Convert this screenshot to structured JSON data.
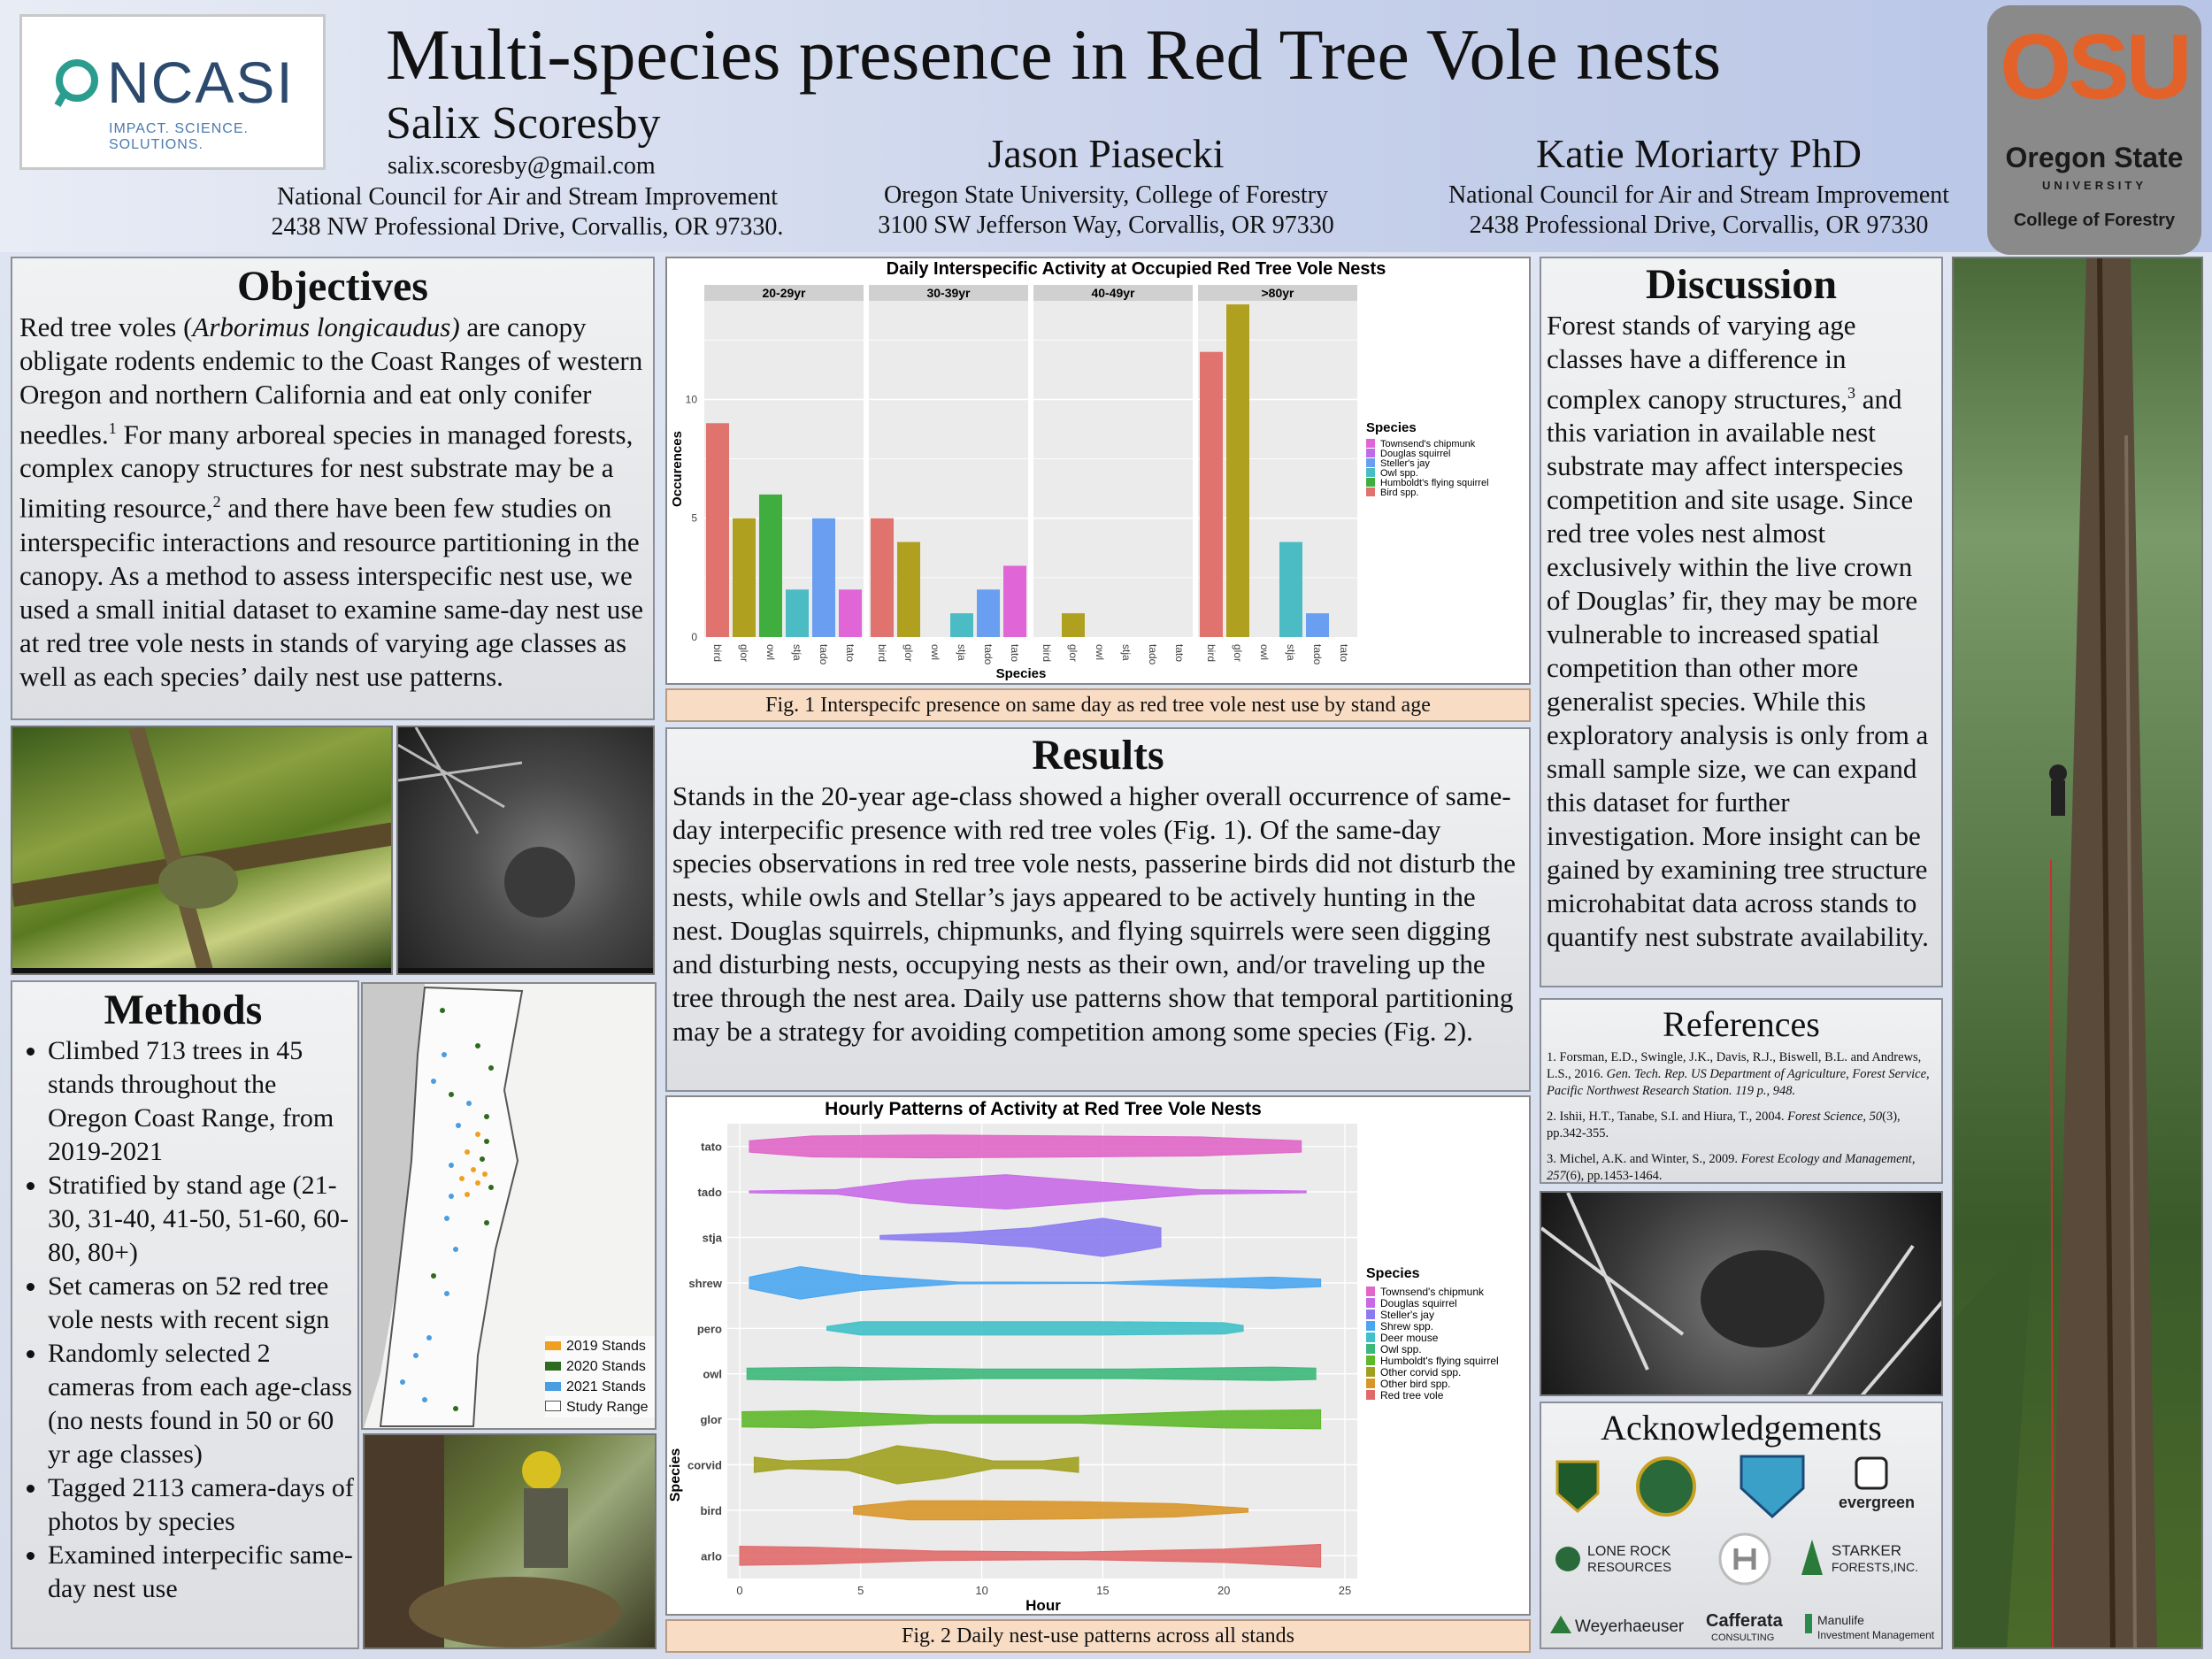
{
  "header": {
    "title": "Multi-species presence in Red Tree Vole nests",
    "authors": [
      {
        "name": "Salix Scoresby",
        "email": "salix.scoresby@gmail.com",
        "org": "National Council for Air and Stream Improvement",
        "addr": "2438 NW Professional Drive, Corvallis, OR 97330."
      },
      {
        "name": "Jason Piasecki",
        "org": "Oregon State University, College of Forestry",
        "addr": "3100 SW Jefferson Way, Corvallis, OR 97330"
      },
      {
        "name": "Katie Moriarty PhD",
        "org": "National Council for Air and Stream Improvement",
        "addr": "2438 Professional Drive, Corvallis, OR 97330"
      }
    ],
    "logo_left": {
      "text": "NCASI",
      "tagline": "IMPACT. SCIENCE. SOLUTIONS."
    },
    "logo_right": {
      "text": "OSU",
      "line1": "Oregon State",
      "line2": "UNIVERSITY",
      "line3": "College of Forestry"
    }
  },
  "objectives": {
    "title": "Objectives",
    "p1": "Red tree voles (",
    "p_species": "Arborimus longicaudus)",
    "p2": " are canopy obligate rodents endemic to the Coast Ranges of western Oregon and northern California and eat only conifer needles.",
    "sup1": "1",
    "p3": " For many arboreal species in managed forests, complex canopy structures for nest substrate may be a limiting resource,",
    "sup2": "2",
    "p4": " and there have been few studies on interspecific interactions and resource partitioning in the canopy. As a method to assess interspecific nest use, we used a small initial dataset to examine same-day nest use at red tree vole nests in stands of varying age classes as well as each species’ daily nest use patterns."
  },
  "methods": {
    "title": "Methods",
    "bullets": [
      "Climbed 713 trees in 45 stands throughout the Oregon Coast Range, from 2019-2021",
      "Stratified by stand age (21-30, 31-40, 41-50, 51-60, 60-80, 80+)",
      "Set cameras on 52 red tree vole nests with recent sign",
      "Randomly selected 2 cameras from each age-class (no nests found in 50 or 60 yr age classes)",
      "Tagged 2113 camera-days of photos by species",
      "Examined interpecific same-day nest use"
    ],
    "map_legend": [
      {
        "label": "2019 Stands",
        "color": "#f0a020"
      },
      {
        "label": "2020 Stands",
        "color": "#2e6b1e"
      },
      {
        "label": "2021 Stands",
        "color": "#4a9de0"
      },
      {
        "label": "Study Range",
        "color": "#ffffff"
      }
    ]
  },
  "results": {
    "title": "Results",
    "text": "Stands in the 20-year age-class showed a higher overall occurrence of same-day interpecific presence with red tree voles (Fig. 1). Of the same-day species observations in red tree vole nests, passerine birds did not disturb the nests, while owls and Stellar’s jays appeared to be actively hunting in the nest. Douglas squirrels, chipmunks, and flying squirrels were seen digging and disturbing nests, occupying nests as their own, and/or traveling up the tree through the nest area. Daily use patterns show that temporal partitioning may be a strategy for avoiding competition among some species (Fig. 2).",
    "fig1_caption": "Fig. 1 Interspecifc presence on same day as red tree vole nest use by stand age",
    "fig2_caption": "Fig. 2 Daily nest-use patterns across all stands"
  },
  "discussion": {
    "title": "Discussion",
    "p1": "Forest stands of varying age classes have a difference in complex canopy structures,",
    "sup": "3",
    "p2": " and this variation in available nest substrate may affect interspecies competition and site usage. Since red tree voles nest almost exclusively within the live crown of Douglas’ fir, they may be more vulnerable to increased spatial competition than other more generalist species. While this exploratory analysis is only from a small sample size, we can expand this dataset for further investigation. More insight can be gained by examining tree structure microhabitat data across stands to quantify nest substrate availability."
  },
  "references": {
    "title": "References",
    "items": [
      {
        "plain": "1. Forsman, E.D., Swingle, J.K., Davis, R.J., Biswell, B.L. and Andrews, L.S., 2016. ",
        "ital": "Gen. Tech. Rep. US Department of Agriculture, Forest Service, Pacific Northwest Research Station. 119 p., 948.",
        "tail": ""
      },
      {
        "plain": "2. Ishii, H.T., Tanabe, S.I. and Hiura, T., 2004. ",
        "ital": "Forest Science, 50",
        "tail": "(3), pp.342-355."
      },
      {
        "plain": "3. Michel, A.K. and Winter, S., 2009. ",
        "ital": "Forest Ecology and Management, 257",
        "tail": "(6), pp.1453-1464."
      }
    ]
  },
  "acknowledgements": {
    "title": "Acknowledgements",
    "logos": [
      "evergreen",
      "LONE ROCK",
      "RESOURCES",
      "STARKER",
      "FORESTS,INC.",
      "Weyerhaeuser",
      "Cafferata",
      "CONSULTING",
      "Manulife",
      "Investment Management"
    ]
  },
  "chart_data": [
    {
      "type": "bar",
      "title": "Daily Interspecific Activity at Occupied Red Tree Vole Nests",
      "xlabel": "Species",
      "ylabel": "Occurences",
      "ylim": [
        0,
        14
      ],
      "yticks": [
        0,
        5,
        10
      ],
      "legend_title": "Species",
      "legend_position": "right",
      "legend": [
        {
          "name": "Townsend's chipmunk",
          "color": "#e066d8"
        },
        {
          "name": "Douglas squirrel",
          "color": "#c06ae8"
        },
        {
          "name": "Steller's jay",
          "color": "#6a9ef0"
        },
        {
          "name": "Owl spp.",
          "color": "#4cbcc4"
        },
        {
          "name": "Humboldt's flying squirrel",
          "color": "#3fae3f"
        },
        {
          "name": "Bird spp.",
          "color": "#e0736e"
        }
      ],
      "panels": [
        {
          "label": "20-29yr",
          "categories": [
            "bird",
            "glor",
            "owl",
            "stja",
            "tado",
            "tato"
          ],
          "values": [
            9,
            5,
            6,
            2,
            5,
            2
          ]
        },
        {
          "label": "30-39yr",
          "categories": [
            "bird",
            "glor",
            "owl",
            "stja",
            "tado",
            "tato"
          ],
          "values": [
            5,
            4,
            0,
            1,
            2,
            3
          ]
        },
        {
          "label": "40-49yr",
          "categories": [
            "bird",
            "glor",
            "owl",
            "stja",
            "tado",
            "tato"
          ],
          "values": [
            0,
            1,
            0,
            0,
            0,
            0
          ]
        },
        {
          "label": ">80yr",
          "categories": [
            "bird",
            "glor",
            "owl",
            "stja",
            "tado",
            "tato"
          ],
          "values": [
            12,
            14,
            0,
            4,
            1,
            0
          ]
        }
      ],
      "category_colors": {
        "bird": "#e0736e",
        "glor": "#b0a020",
        "owl": "#3fae3f",
        "stja": "#4cbcc4",
        "tado": "#6a9ef0",
        "tato": "#e066d8"
      }
    },
    {
      "type": "violin",
      "title": "Hourly Patterns of Activity at Red Tree Vole Nests",
      "xlabel": "Hour",
      "ylabel": "Species",
      "xlim": [
        0,
        25
      ],
      "xticks": [
        0,
        5,
        10,
        15,
        20,
        25
      ],
      "legend_title": "Species",
      "legend_position": "right",
      "legend": [
        {
          "name": "Townsend's chipmunk",
          "color": "#e066c8"
        },
        {
          "name": "Douglas squirrel",
          "color": "#c86ae8"
        },
        {
          "name": "Steller's jay",
          "color": "#8a7cf0"
        },
        {
          "name": "Shrew spp.",
          "color": "#4aa6f0"
        },
        {
          "name": "Deer mouse",
          "color": "#40c0c8"
        },
        {
          "name": "Owl spp.",
          "color": "#3cb87a"
        },
        {
          "name": "Humboldt's flying squirrel",
          "color": "#5eb82a"
        },
        {
          "name": "Other corvid spp.",
          "color": "#a0a020"
        },
        {
          "name": "Other bird spp.",
          "color": "#d8962a"
        },
        {
          "name": "Red tree vole",
          "color": "#e06a6a"
        }
      ],
      "series": [
        {
          "name": "tato",
          "color": "#e066c8",
          "range": [
            0.4,
            23.2
          ],
          "density": [
            [
              0.4,
              0.3
            ],
            [
              3,
              0.55
            ],
            [
              8,
              0.6
            ],
            [
              14,
              0.55
            ],
            [
              19,
              0.5
            ],
            [
              23.2,
              0.3
            ]
          ]
        },
        {
          "name": "tado",
          "color": "#c86ae8",
          "range": [
            0.4,
            23.4
          ],
          "density": [
            [
              0.4,
              0.05
            ],
            [
              4,
              0.12
            ],
            [
              7,
              0.6
            ],
            [
              11,
              0.9
            ],
            [
              15,
              0.5
            ],
            [
              19,
              0.12
            ],
            [
              23.4,
              0.05
            ]
          ]
        },
        {
          "name": "stja",
          "color": "#8a7cf0",
          "range": [
            5.8,
            17.4
          ],
          "density": [
            [
              5.8,
              0.1
            ],
            [
              9,
              0.25
            ],
            [
              12,
              0.5
            ],
            [
              15,
              1.0
            ],
            [
              16.5,
              0.7
            ],
            [
              17.4,
              0.5
            ]
          ]
        },
        {
          "name": "shrew",
          "color": "#4aa6f0",
          "range": [
            0.4,
            24
          ],
          "density": [
            [
              0.4,
              0.3
            ],
            [
              2.5,
              0.85
            ],
            [
              5,
              0.4
            ],
            [
              9,
              0.05
            ],
            [
              15,
              0.03
            ],
            [
              18,
              0.15
            ],
            [
              22,
              0.3
            ],
            [
              24,
              0.2
            ]
          ]
        },
        {
          "name": "pero",
          "color": "#40c0c8",
          "range": [
            3.6,
            20.8
          ],
          "density": [
            [
              3.6,
              0.1
            ],
            [
              5,
              0.35
            ],
            [
              10,
              0.35
            ],
            [
              15,
              0.35
            ],
            [
              20,
              0.3
            ],
            [
              20.8,
              0.15
            ]
          ]
        },
        {
          "name": "owl",
          "color": "#3cb87a",
          "range": [
            0.3,
            23.8
          ],
          "density": [
            [
              0.3,
              0.3
            ],
            [
              4,
              0.35
            ],
            [
              10,
              0.25
            ],
            [
              16,
              0.25
            ],
            [
              22,
              0.35
            ],
            [
              23.8,
              0.3
            ]
          ]
        },
        {
          "name": "glor",
          "color": "#5eb82a",
          "range": [
            0.1,
            24
          ],
          "density": [
            [
              0.1,
              0.4
            ],
            [
              3,
              0.45
            ],
            [
              8,
              0.2
            ],
            [
              14,
              0.2
            ],
            [
              20,
              0.45
            ],
            [
              24,
              0.5
            ]
          ]
        },
        {
          "name": "corvid",
          "color": "#a0a020",
          "range": [
            0.6,
            14
          ],
          "density": [
            [
              0.6,
              0.4
            ],
            [
              2,
              0.2
            ],
            [
              4.5,
              0.3
            ],
            [
              6.5,
              1.0
            ],
            [
              8.5,
              0.7
            ],
            [
              10.5,
              0.2
            ],
            [
              12.5,
              0.2
            ],
            [
              14,
              0.4
            ]
          ]
        },
        {
          "name": "bird",
          "color": "#d8962a",
          "range": [
            4.7,
            21
          ],
          "density": [
            [
              4.7,
              0.2
            ],
            [
              7,
              0.5
            ],
            [
              10,
              0.5
            ],
            [
              14,
              0.45
            ],
            [
              18,
              0.35
            ],
            [
              21,
              0.1
            ]
          ]
        },
        {
          "name": "arlo",
          "color": "#e06a6a",
          "range": [
            0,
            24
          ],
          "density": [
            [
              0,
              0.5
            ],
            [
              3,
              0.45
            ],
            [
              8,
              0.25
            ],
            [
              14,
              0.2
            ],
            [
              20,
              0.35
            ],
            [
              24,
              0.6
            ]
          ]
        }
      ]
    }
  ]
}
